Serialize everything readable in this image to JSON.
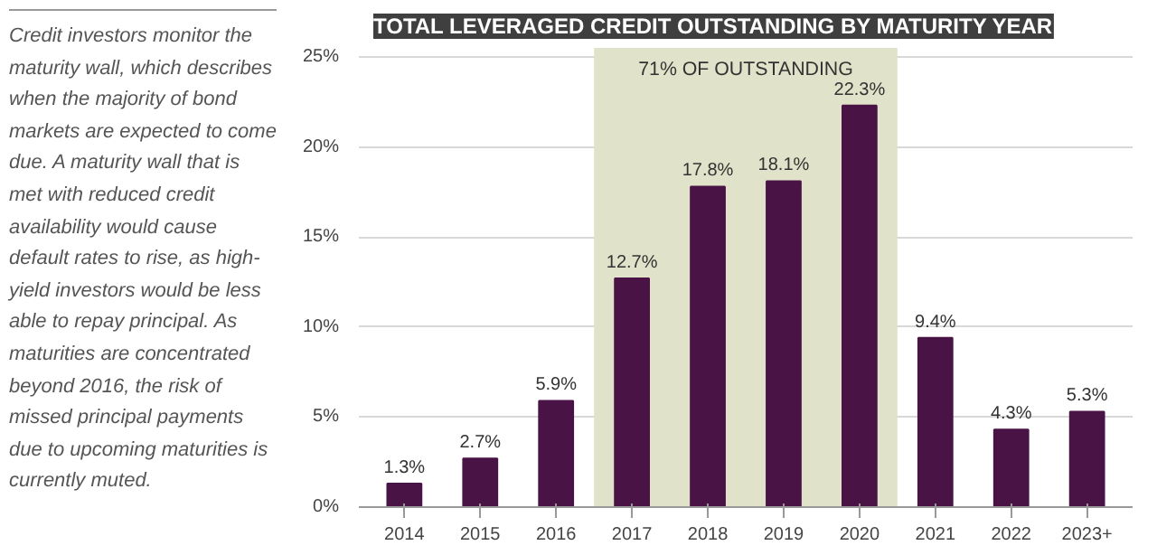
{
  "chart_data": {
    "type": "bar",
    "title": "TOTAL LEVERAGED CREDIT OUTSTANDING BY MATURITY YEAR",
    "categories": [
      "2014",
      "2015",
      "2016",
      "2017",
      "2018",
      "2019",
      "2020",
      "2021",
      "2022",
      "2023+"
    ],
    "values": [
      1.3,
      2.7,
      5.9,
      12.7,
      17.8,
      18.1,
      22.3,
      9.4,
      4.3,
      5.3
    ],
    "value_labels": [
      "1.3%",
      "2.7%",
      "5.9%",
      "12.7%",
      "17.8%",
      "18.1%",
      "22.3%",
      "9.4%",
      "4.3%",
      "5.3%"
    ],
    "color": "#4a1346",
    "ylim": [
      0,
      25.5
    ],
    "yticks": [
      {
        "value": 0,
        "label": "0%"
      },
      {
        "value": 5,
        "label": "5%"
      },
      {
        "value": 10,
        "label": "10%"
      },
      {
        "value": 15,
        "label": "15%"
      },
      {
        "value": 20,
        "label": "20%"
      },
      {
        "value": 25,
        "label": "25%"
      }
    ],
    "grid": "y",
    "bands": [
      {
        "axis": "x",
        "from": "2017",
        "to": "2020",
        "label": "71% OF OUTSTANDING",
        "color": "#e0e3c9"
      }
    ],
    "annotations": [
      "Credit investors monitor the maturity wall, which describes when the majority of bond markets are expected to come due. A maturity wall that is met with reduced credit availability would cause default rates to rise, as high-yield investors would be less able to repay principal. As maturities are concentrated beyond 2016, the risk of missed principal payments due to upcoming maturities is currently muted."
    ]
  }
}
